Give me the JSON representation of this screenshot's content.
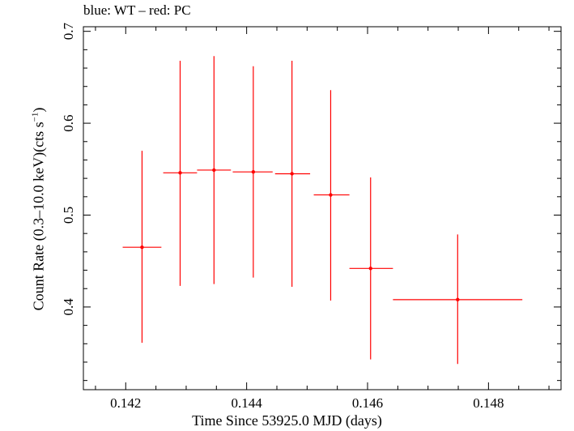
{
  "chart_data": {
    "type": "scatter",
    "title": "blue: WT – red: PC",
    "xlabel": "Time Since 53925.0 MJD (days)",
    "ylabel_main": "Count Rate (0.3–10.0 keV)(cts s",
    "ylabel_sup": "−1",
    "ylabel_end": ")",
    "xlim": [
      0.1413,
      0.1492
    ],
    "ylim": [
      0.31,
      0.705
    ],
    "x_ticks": [
      0.142,
      0.144,
      0.146,
      0.148
    ],
    "x_ticklabels": [
      "0.142",
      "0.144",
      "0.146",
      "0.148"
    ],
    "y_ticks": [
      0.4,
      0.5,
      0.6,
      0.7
    ],
    "y_ticklabels": [
      "0.4",
      "0.5",
      "0.6",
      "0.7"
    ],
    "grid": false,
    "series": [
      {
        "name": "PC",
        "color": "#ff0000",
        "points": [
          {
            "x": 0.14227,
            "y": 0.465,
            "xlo": 0.14195,
            "xhi": 0.14259,
            "ylo": 0.361,
            "yhi": 0.57
          },
          {
            "x": 0.1429,
            "y": 0.546,
            "xlo": 0.14262,
            "xhi": 0.14318,
            "ylo": 0.423,
            "yhi": 0.668
          },
          {
            "x": 0.14346,
            "y": 0.549,
            "xlo": 0.14318,
            "xhi": 0.14374,
            "ylo": 0.425,
            "yhi": 0.673
          },
          {
            "x": 0.14411,
            "y": 0.547,
            "xlo": 0.14377,
            "xhi": 0.14443,
            "ylo": 0.432,
            "yhi": 0.662
          },
          {
            "x": 0.14475,
            "y": 0.545,
            "xlo": 0.14447,
            "xhi": 0.14505,
            "ylo": 0.422,
            "yhi": 0.668
          },
          {
            "x": 0.14539,
            "y": 0.522,
            "xlo": 0.14511,
            "xhi": 0.1457,
            "ylo": 0.407,
            "yhi": 0.636
          },
          {
            "x": 0.14605,
            "y": 0.442,
            "xlo": 0.1457,
            "xhi": 0.14642,
            "ylo": 0.343,
            "yhi": 0.541
          },
          {
            "x": 0.14749,
            "y": 0.408,
            "xlo": 0.14642,
            "xhi": 0.14856,
            "ylo": 0.338,
            "yhi": 0.479
          }
        ]
      }
    ]
  }
}
